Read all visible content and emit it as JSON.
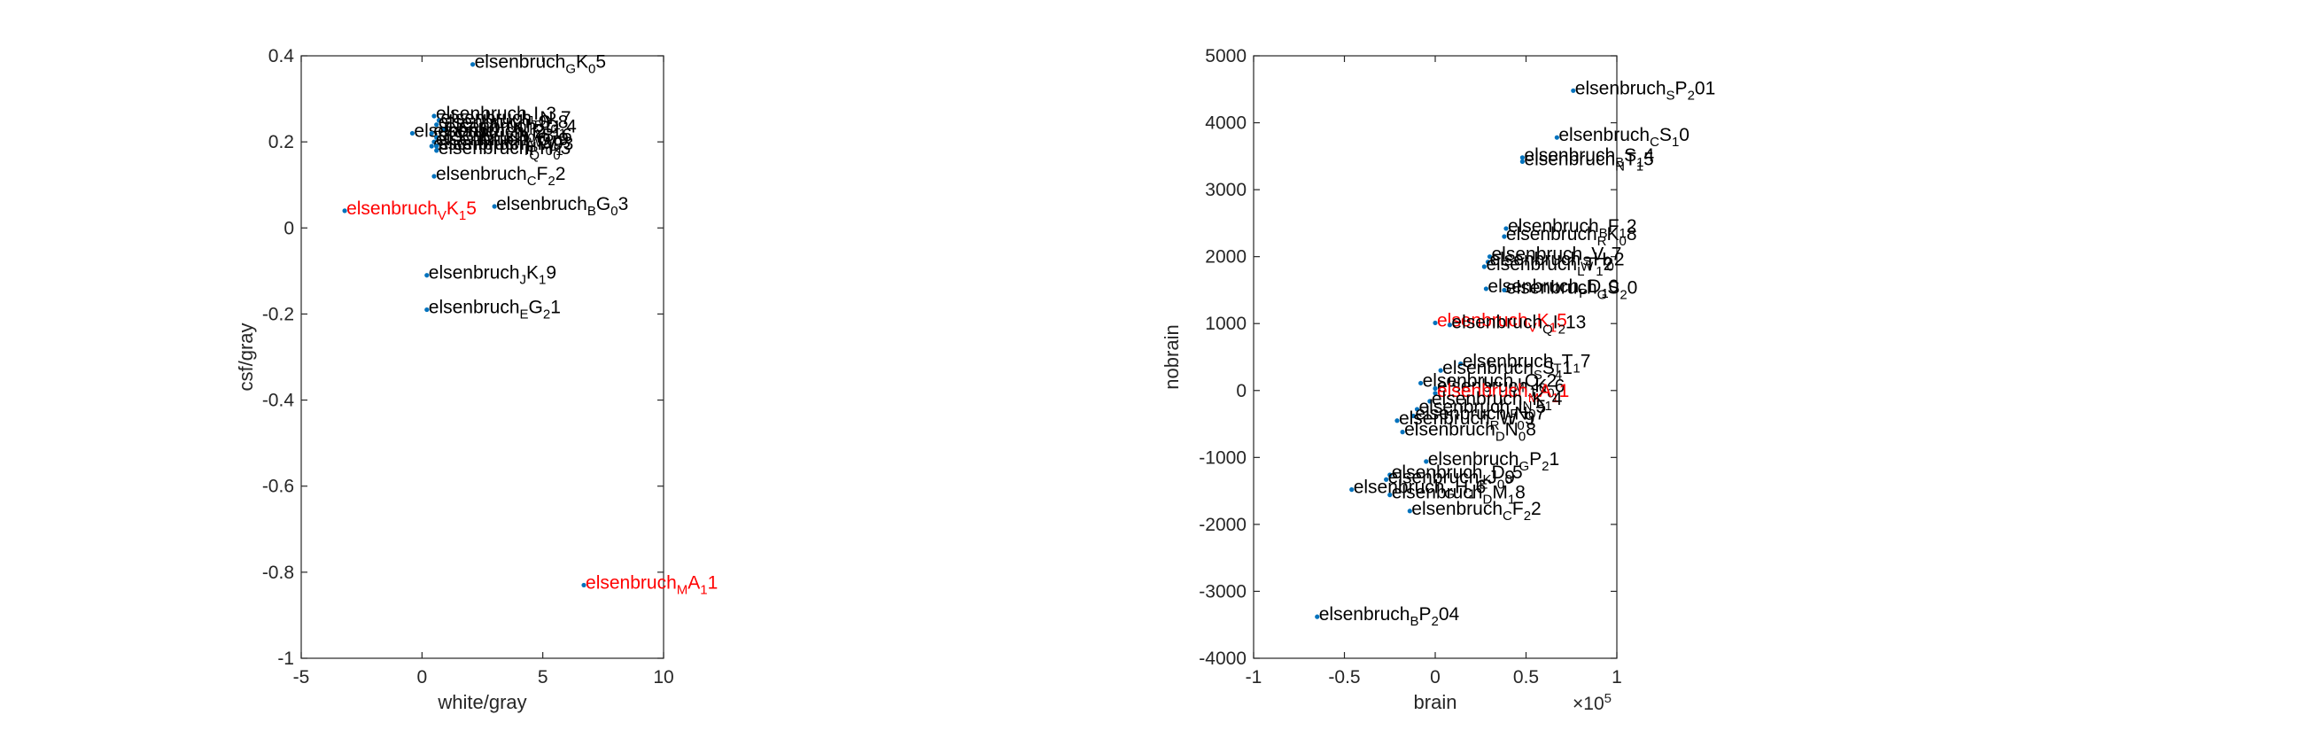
{
  "figure": {
    "background": "#ffffff",
    "point_color": "#0072bd",
    "label_color": "#000000",
    "highlight_color": "#ff0000"
  },
  "chart_data": [
    {
      "type": "scatter",
      "title": "",
      "xlabel": "white/gray",
      "ylabel": "csf/gray",
      "xlim": [
        -5,
        10
      ],
      "ylim": [
        -1,
        0.4
      ],
      "xticks": [
        -5,
        0,
        5,
        10
      ],
      "xtick_labels": [
        "-5",
        "0",
        "5",
        "10"
      ],
      "yticks": [
        -1,
        -0.8,
        -0.6,
        -0.4,
        -0.2,
        0,
        0.2,
        0.4
      ],
      "ytick_labels": [
        "-1",
        "-0.8",
        "-0.6",
        "-0.4",
        "-0.2",
        "0",
        "0.2",
        "0.4"
      ],
      "grid": false,
      "legend": "none",
      "points": [
        {
          "x": 2.1,
          "y": 0.38,
          "label": "elsenbruch_GK_05",
          "highlight": false
        },
        {
          "x": 0.5,
          "y": 0.26,
          "label": "elsenbruch_JI_03",
          "highlight": false
        },
        {
          "x": 0.7,
          "y": 0.25,
          "label": "elsenbruch_TN_17",
          "highlight": false
        },
        {
          "x": 0.6,
          "y": 0.24,
          "label": "elsenbruch_KS_08",
          "highlight": false
        },
        {
          "x": 0.9,
          "y": 0.23,
          "label": "elsenbruch_VD_14",
          "highlight": false
        },
        {
          "x": -0.4,
          "y": 0.22,
          "label": "elsenbruch_SN_02",
          "highlight": false
        },
        {
          "x": 0.4,
          "y": 0.22,
          "label": "elsenbruch_LP_11",
          "highlight": false
        },
        {
          "x": 0.6,
          "y": 0.21,
          "label": "elsenbruch_WB_06",
          "highlight": false
        },
        {
          "x": 0.5,
          "y": 0.2,
          "label": "elsenbruch_HQ_19",
          "highlight": false
        },
        {
          "x": 0.4,
          "y": 0.19,
          "label": "elsenbruch_RT_09",
          "highlight": false
        },
        {
          "x": 0.6,
          "y": 0.19,
          "label": "elsenbruch_PW_13",
          "highlight": false
        },
        {
          "x": 0.6,
          "y": 0.18,
          "label": "elsenbruch_QH_03",
          "highlight": false
        },
        {
          "x": 0.5,
          "y": 0.12,
          "label": "elsenbruch_CF_22",
          "highlight": false
        },
        {
          "x": 3.0,
          "y": 0.05,
          "label": "elsenbruch_BG_03",
          "highlight": false
        },
        {
          "x": -3.2,
          "y": 0.04,
          "label": "elsenbruch_VK_15",
          "highlight": true
        },
        {
          "x": 0.2,
          "y": -0.11,
          "label": "elsenbruch_JK_19",
          "highlight": false
        },
        {
          "x": 0.2,
          "y": -0.19,
          "label": "elsenbruch_EG_21",
          "highlight": false
        },
        {
          "x": 6.7,
          "y": -0.83,
          "label": "elsenbruch_MA_11",
          "highlight": true
        }
      ]
    },
    {
      "type": "scatter",
      "title": "",
      "xlabel": "brain",
      "ylabel": "nobrain",
      "x_exponent_label": "×10",
      "x_exponent": "5",
      "xlim": [
        -100000,
        100000
      ],
      "ylim": [
        -4000,
        5000
      ],
      "xticks": [
        -100000,
        -50000,
        0,
        50000,
        100000
      ],
      "xtick_labels": [
        "-1",
        "-0.5",
        "0",
        "0.5",
        "1"
      ],
      "yticks": [
        -4000,
        -3000,
        -2000,
        -1000,
        0,
        1000,
        2000,
        3000,
        4000,
        5000
      ],
      "ytick_labels": [
        "-4000",
        "-3000",
        "-2000",
        "-1000",
        "0",
        "1000",
        "2000",
        "3000",
        "4000",
        "5000"
      ],
      "grid": false,
      "legend": "none",
      "points": [
        {
          "x": 76000,
          "y": 4480,
          "label": "elsenbruch_SP_201",
          "highlight": false
        },
        {
          "x": 67000,
          "y": 3780,
          "label": "elsenbruch_CS_10",
          "highlight": false
        },
        {
          "x": 48000,
          "y": 3480,
          "label": "elsenbruch_BS_14",
          "highlight": false
        },
        {
          "x": 48000,
          "y": 3420,
          "label": "elsenbruch_NT_15",
          "highlight": false
        },
        {
          "x": 39000,
          "y": 2420,
          "label": "elsenbruch_BF_12",
          "highlight": false
        },
        {
          "x": 38000,
          "y": 2300,
          "label": "elsenbruch_RK_08",
          "highlight": false
        },
        {
          "x": 30000,
          "y": 2000,
          "label": "elsenbruch_SV_07",
          "highlight": false
        },
        {
          "x": 29000,
          "y": 1920,
          "label": "elsenbruch_WH_02",
          "highlight": false
        },
        {
          "x": 27000,
          "y": 1850,
          "label": "elsenbruch_LT_12",
          "highlight": false
        },
        {
          "x": 28000,
          "y": 1520,
          "label": "elsenbruch_PD_10",
          "highlight": false
        },
        {
          "x": 38000,
          "y": 1500,
          "label": "elsenbruch_GS_20",
          "highlight": false
        },
        {
          "x": 0,
          "y": 1010,
          "label": "elsenbruch_VK_15",
          "highlight": true
        },
        {
          "x": 8000,
          "y": 980,
          "label": "elsenbruch_QI_213",
          "highlight": false
        },
        {
          "x": 14000,
          "y": 400,
          "label": "elsenbruch_TT_17",
          "highlight": false
        },
        {
          "x": 3000,
          "y": 300,
          "label": "elsenbruch_SS_41",
          "highlight": false
        },
        {
          "x": -8000,
          "y": 110,
          "label": "elsenbruch_MQ_02",
          "highlight": false
        },
        {
          "x": 0,
          "y": 30,
          "label": "elsenbruch_JK_06",
          "highlight": false
        },
        {
          "x": 0,
          "y": -40,
          "label": "elsenbruch_MA_11",
          "highlight": true
        },
        {
          "x": -3000,
          "y": -160,
          "label": "elsenbruch_NK_14",
          "highlight": false
        },
        {
          "x": -10000,
          "y": -280,
          "label": "elsenbruch_FL_05",
          "highlight": false
        },
        {
          "x": -12000,
          "y": -380,
          "label": "elsenbruch_TN_17",
          "highlight": false
        },
        {
          "x": -21000,
          "y": -450,
          "label": "elsenbruch_RW_09",
          "highlight": false
        },
        {
          "x": -18000,
          "y": -620,
          "label": "elsenbruch_DN_08",
          "highlight": false
        },
        {
          "x": -5000,
          "y": -1060,
          "label": "elsenbruch_GP_21",
          "highlight": false
        },
        {
          "x": -25000,
          "y": -1260,
          "label": "elsenbruch_KD_05",
          "highlight": false
        },
        {
          "x": -27000,
          "y": -1330,
          "label": "elsenbruch_EJ_09",
          "highlight": false
        },
        {
          "x": -46000,
          "y": -1480,
          "label": "elsenbruch_GH_16",
          "highlight": false
        },
        {
          "x": -25000,
          "y": -1560,
          "label": "elsenbruch_DM_18",
          "highlight": false
        },
        {
          "x": -14000,
          "y": -1800,
          "label": "elsenbruch_CF_22",
          "highlight": false
        },
        {
          "x": -65000,
          "y": -3380,
          "label": "elsenbruch_BP_204",
          "highlight": false
        }
      ]
    }
  ]
}
